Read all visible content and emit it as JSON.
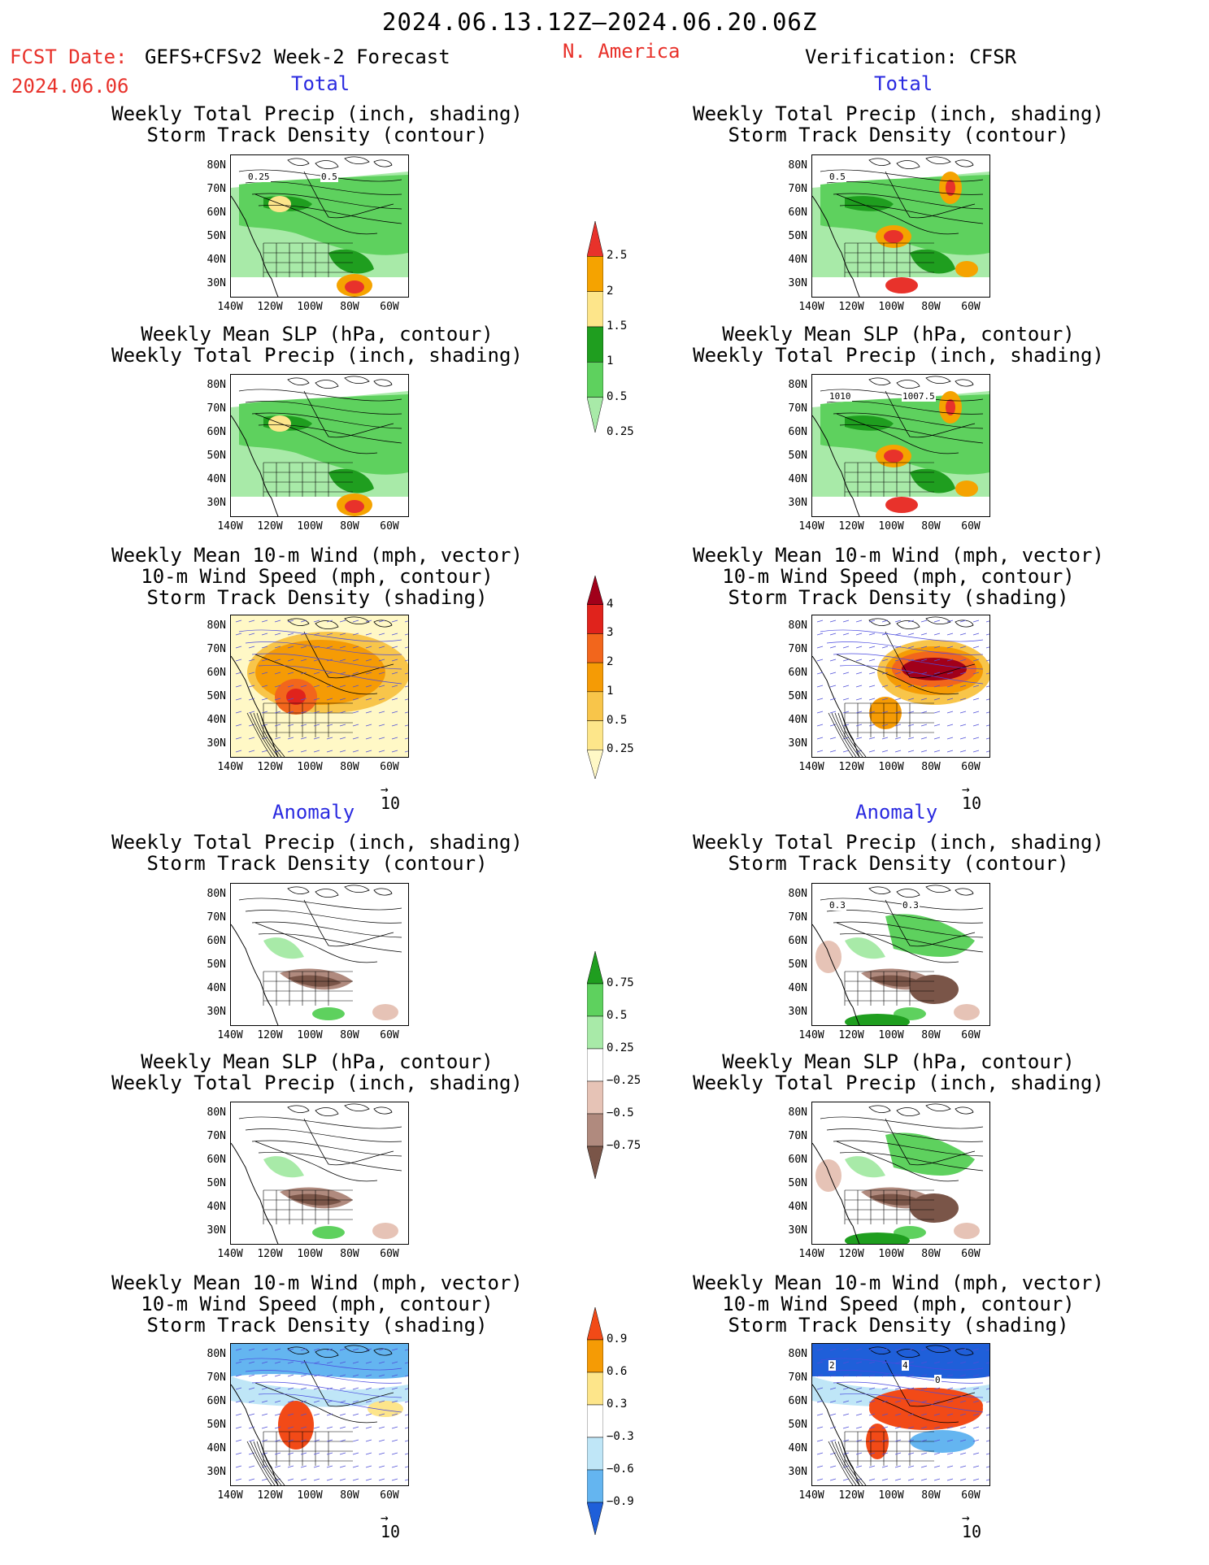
{
  "header": {
    "period": "2024.06.13.12Z‒2024.06.20.06Z",
    "fcst_label": "FCST Date:",
    "fcst_title": "GEFS+CFSv2 Week-2 Forecast",
    "region": "N. America",
    "verification": "Verification: CFSR",
    "fcst_date": "2024.06.06"
  },
  "sections": {
    "total": "Total",
    "anomaly": "Anomaly"
  },
  "titles": {
    "precip_storm": [
      "Weekly Total Precip (inch, shading)",
      "Storm Track Density (contour)"
    ],
    "slp_precip": [
      "Weekly Mean SLP (hPa, contour)",
      "Weekly Total Precip (inch, shading)"
    ],
    "wind_storm": [
      "Weekly Mean 10-m Wind (mph, vector)",
      "10-m Wind Speed (mph, contour)",
      "Storm Track Density (shading)"
    ]
  },
  "axes": {
    "lat": [
      "80N",
      "70N",
      "60N",
      "50N",
      "40N",
      "30N"
    ],
    "lon": [
      "140W",
      "120W",
      "100W",
      "80W",
      "60W"
    ]
  },
  "vector_ref": "10",
  "map_labels": {
    "r1_left": [
      "0.25",
      "0.5"
    ],
    "r1_right": [
      "0.5"
    ],
    "r2_right": [
      "1010",
      "1007.5"
    ],
    "r4_right": [
      "0.3",
      "0.3"
    ],
    "r6_right": [
      "2",
      "4",
      "0"
    ]
  },
  "colorbars": {
    "precip_total": {
      "labels": [
        "2.5",
        "2",
        "1.5",
        "1",
        "0.5",
        "0.25"
      ],
      "colors": [
        "#e8322b",
        "#f5a300",
        "#fde58a",
        "#1f9e1f",
        "#5ed15e",
        "#a8eaa8"
      ]
    },
    "storm_total": {
      "labels": [
        "4",
        "3",
        "2",
        "1",
        "0.5",
        "0.25"
      ],
      "colors": [
        "#a1001a",
        "#e0231c",
        "#f2661c",
        "#f59b05",
        "#f8c54a",
        "#fde68a",
        "#fff8c6"
      ]
    },
    "precip_anom": {
      "labels": [
        "0.75",
        "0.5",
        "0.25",
        "−0.25",
        "−0.5",
        "−0.75"
      ],
      "colors": [
        "#1f9e1f",
        "#5ed15e",
        "#a8eaa8",
        "#ffffff",
        "#e6c3b6",
        "#b08a7e",
        "#7a5548"
      ]
    },
    "storm_anom": {
      "labels": [
        "0.9",
        "0.6",
        "0.3",
        "−0.3",
        "−0.6",
        "−0.9"
      ],
      "colors": [
        "#f24a17",
        "#f59b05",
        "#fde58a",
        "#ffffff",
        "#bfe6f7",
        "#64b5f0",
        "#1f5fd9"
      ]
    }
  }
}
